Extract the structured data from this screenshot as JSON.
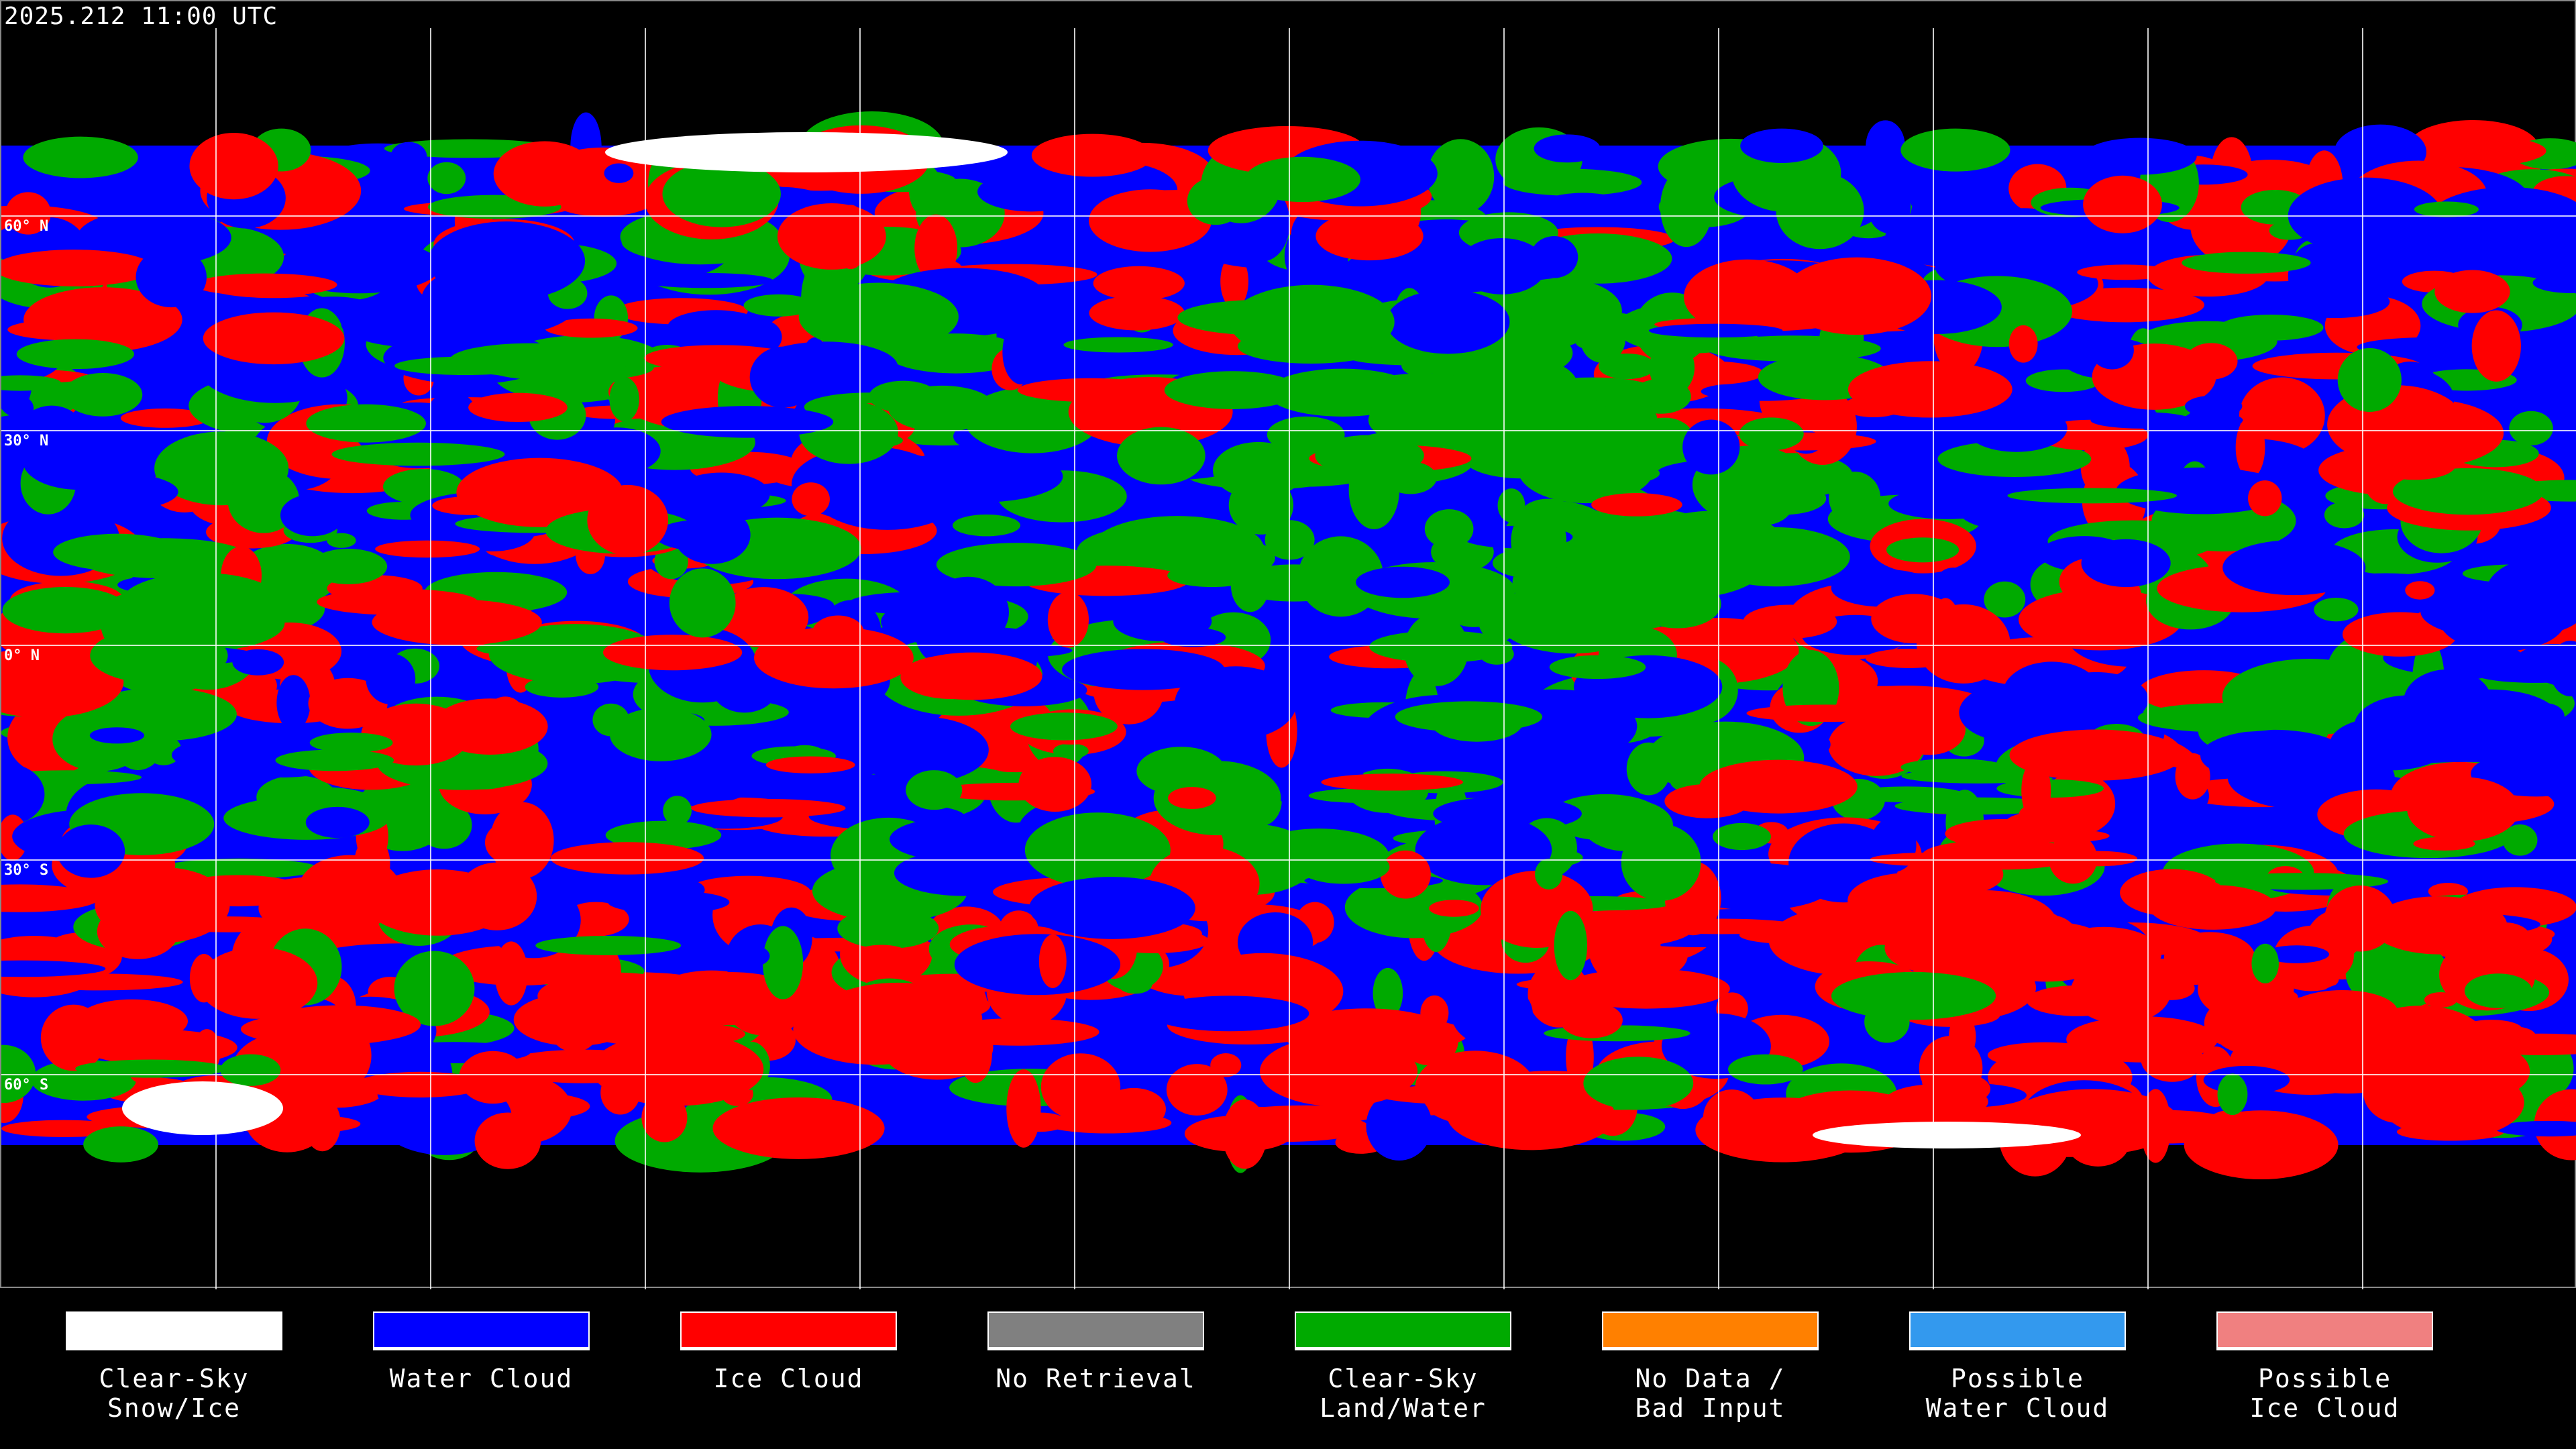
{
  "header": {
    "timestamp": "2025.212 11:00 UTC"
  },
  "map": {
    "lat_labels": [
      "60° N",
      "30° N",
      "0° N",
      "30° S",
      "60° S"
    ],
    "gridline_color": "#ffffff"
  },
  "legend": [
    {
      "label": "Clear-Sky\nSnow/Ice",
      "color": "#ffffff"
    },
    {
      "label": "Water Cloud",
      "color": "#0000ff"
    },
    {
      "label": "Ice Cloud",
      "color": "#ff0000"
    },
    {
      "label": "No Retrieval",
      "color": "#808080"
    },
    {
      "label": "Clear-Sky\nLand/Water",
      "color": "#00aa00"
    },
    {
      "label": "No Data /\nBad Input",
      "color": "#ff8000"
    },
    {
      "label": "Possible\nWater Cloud",
      "color": "#3399ee"
    },
    {
      "label": "Possible\nIce Cloud",
      "color": "#f08080"
    }
  ]
}
